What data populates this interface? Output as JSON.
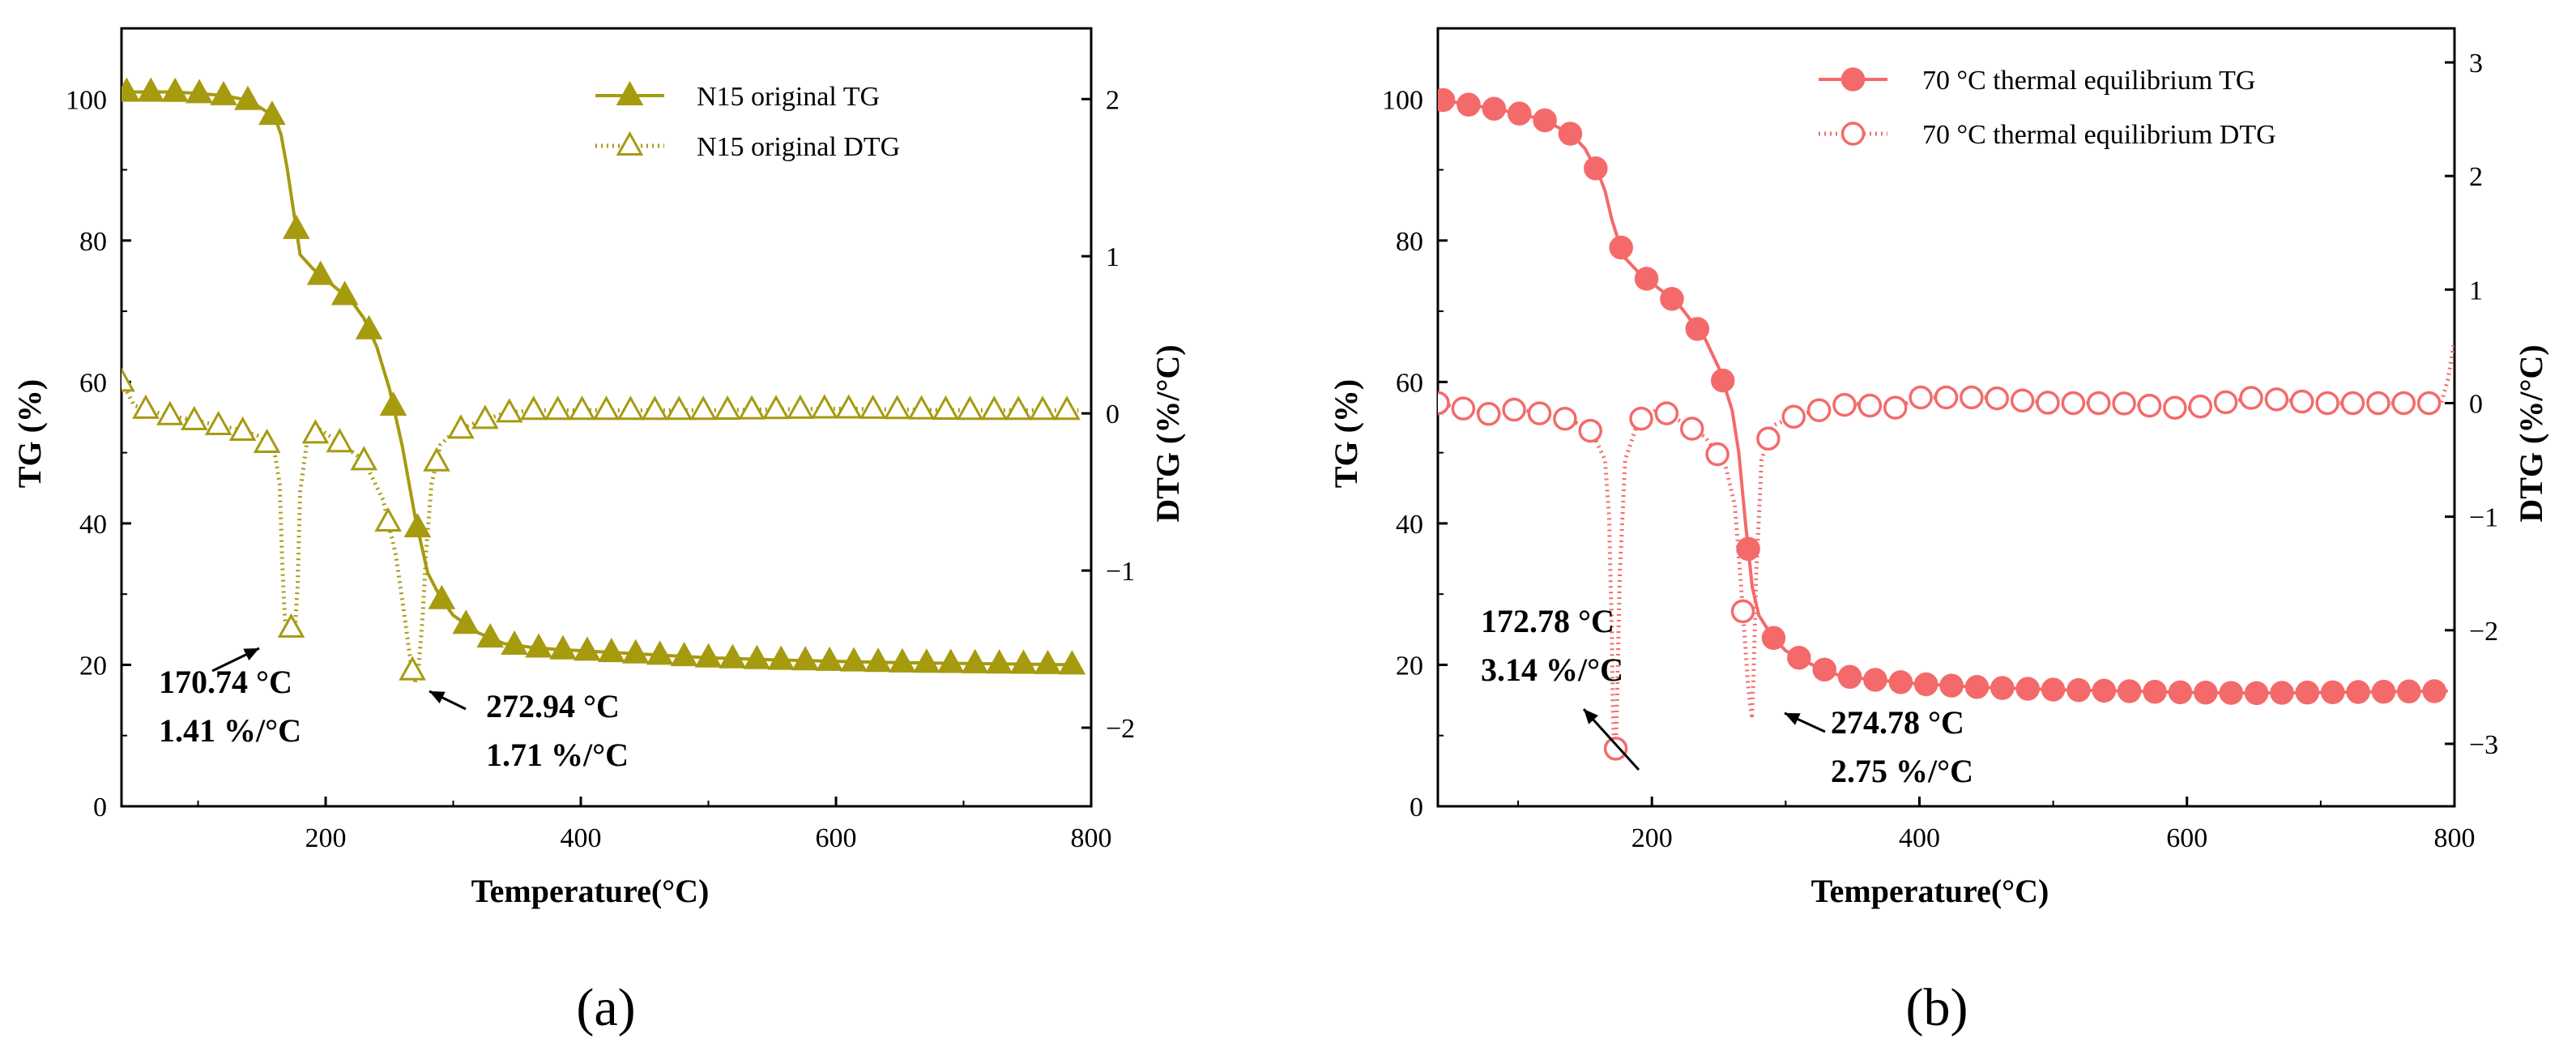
{
  "chart_data": [
    {
      "panel_label": "(a)",
      "type": "line",
      "xlabel": "Temperature(°C)",
      "ylabel": "TG (%)",
      "y2label": "DTG (%/°C)",
      "xlim": [
        40,
        800
      ],
      "ylim": [
        0,
        110
      ],
      "y2lim": [
        -2.5,
        2.45
      ],
      "xticks": [
        200,
        400,
        600,
        800
      ],
      "yticks": [
        0,
        20,
        40,
        60,
        80,
        100
      ],
      "y2ticks": [
        -2,
        -1,
        0,
        1,
        2
      ],
      "y2tick_labels": [
        "−2",
        "−1",
        "0",
        "1",
        "2"
      ],
      "color": "#a69a0f",
      "legend_position": "top-right",
      "series": [
        {
          "name": "N15 original TG",
          "axis": "left",
          "line_style": "solid",
          "marker": "filled-triangle",
          "x": [
            40,
            60,
            80,
            100,
            120,
            140,
            160,
            165,
            170,
            175,
            180,
            190,
            200,
            210,
            220,
            230,
            240,
            250,
            260,
            270,
            275,
            280,
            290,
            300,
            320,
            340,
            360,
            380,
            400,
            450,
            500,
            550,
            600,
            650,
            700,
            750,
            790
          ],
          "values": [
            101,
            101,
            101,
            100.8,
            100.5,
            99.8,
            97.5,
            95,
            90,
            84,
            78,
            76,
            74.5,
            73,
            71.5,
            69,
            65,
            59,
            51,
            41,
            37,
            33,
            29.5,
            27,
            24.5,
            23,
            22.5,
            22.2,
            22,
            21.5,
            21,
            20.7,
            20.5,
            20.3,
            20.2,
            20.1,
            20
          ],
          "markers_x": [
            44,
            63,
            82,
            101,
            120,
            139,
            158,
            177,
            196,
            215,
            234,
            253,
            272,
            291,
            310,
            329,
            348,
            367,
            386,
            405,
            424,
            443,
            462,
            481,
            500,
            519,
            538,
            557,
            576,
            595,
            614,
            633,
            652,
            671,
            690,
            709,
            728,
            747,
            766,
            785
          ]
        },
        {
          "name": "N15 original DTG",
          "axis": "right",
          "line_style": "dotted",
          "marker": "open-triangle",
          "x": [
            40,
            50,
            70,
            100,
            130,
            150,
            160,
            164,
            166,
            168,
            170,
            172,
            174,
            176,
            178,
            180,
            185,
            195,
            210,
            230,
            245,
            255,
            262,
            267,
            270,
            273,
            276,
            279,
            283,
            290,
            300,
            320,
            340,
            360,
            400,
            500,
            600,
            700,
            790
          ],
          "values": [
            0.2,
            0.05,
            0.0,
            -0.05,
            -0.1,
            -0.15,
            -0.25,
            -0.45,
            -0.95,
            -1.3,
            -1.41,
            -1.38,
            -1.35,
            -1.36,
            -1.1,
            -0.5,
            -0.2,
            -0.1,
            -0.18,
            -0.3,
            -0.55,
            -0.9,
            -1.3,
            -1.6,
            -1.71,
            -1.6,
            -1.3,
            -0.85,
            -0.45,
            -0.2,
            -0.12,
            -0.05,
            0.0,
            0.02,
            0.02,
            0.02,
            0.03,
            0.02,
            0.02
          ],
          "markers_x": [
            40,
            59,
            78,
            97,
            116,
            135,
            154,
            173,
            192,
            211,
            230,
            249,
            268,
            287,
            306,
            325,
            344,
            363,
            382,
            401,
            420,
            439,
            458,
            477,
            496,
            515,
            534,
            553,
            572,
            591,
            610,
            629,
            648,
            667,
            686,
            705,
            724,
            743,
            762,
            781
          ]
        }
      ],
      "annotations": [
        {
          "line1": "170.74 °C",
          "line2": "1.41 %/°C",
          "peak_x": 170.74,
          "peak_dtg": -1.41
        },
        {
          "line1": "272.94 °C",
          "line2": "1.71 %/°C",
          "peak_x": 272.94,
          "peak_dtg": -1.71
        }
      ]
    },
    {
      "panel_label": "(b)",
      "type": "line",
      "xlabel": "Temperature(°C)",
      "ylabel": "TG (%)",
      "y2label": "DTG (%/°C)",
      "xlim": [
        40,
        800
      ],
      "ylim": [
        0,
        110
      ],
      "y2lim": [
        -3.55,
        3.3
      ],
      "xticks": [
        200,
        400,
        600,
        800
      ],
      "yticks": [
        0,
        20,
        40,
        60,
        80,
        100
      ],
      "y2ticks": [
        -3,
        -2,
        -1,
        0,
        1,
        2,
        3
      ],
      "y2tick_labels": [
        "−3",
        "−2",
        "−1",
        "0",
        "1",
        "2",
        "3"
      ],
      "color": "#f46a6a",
      "legend_position": "top-right",
      "series": [
        {
          "name": "70 °C thermal equilibrium TG",
          "axis": "left",
          "line_style": "solid",
          "marker": "filled-circle",
          "x": [
            40,
            60,
            80,
            100,
            120,
            140,
            150,
            160,
            165,
            170,
            175,
            180,
            190,
            200,
            220,
            240,
            250,
            260,
            265,
            270,
            275,
            280,
            290,
            300,
            320,
            340,
            360,
            400,
            450,
            500,
            550,
            600,
            650,
            700,
            750,
            795
          ],
          "values": [
            100,
            99.3,
            98.7,
            98,
            97,
            95,
            93,
            89.5,
            87,
            83,
            80,
            77.5,
            75.5,
            74,
            71,
            66,
            62,
            56,
            50,
            40,
            31,
            27,
            24,
            22,
            20,
            18.5,
            18,
            17.3,
            16.8,
            16.5,
            16.3,
            16.1,
            16,
            16.1,
            16.2,
            16.3
          ],
          "markers_x": [
            44,
            63,
            82,
            101,
            120,
            139,
            158,
            177,
            196,
            215,
            234,
            253,
            272,
            291,
            310,
            329,
            348,
            367,
            386,
            405,
            424,
            443,
            462,
            481,
            500,
            519,
            538,
            557,
            576,
            595,
            614,
            633,
            652,
            671,
            690,
            709,
            728,
            747,
            766,
            785
          ]
        },
        {
          "name": "70 °C thermal equilibrium DTG",
          "axis": "right",
          "line_style": "dotted",
          "marker": "open-circle",
          "x": [
            40,
            60,
            80,
            100,
            120,
            140,
            155,
            165,
            168,
            170,
            171,
            172,
            172.78,
            174,
            176,
            180,
            190,
            205,
            220,
            240,
            255,
            262,
            266,
            269,
            272,
            274,
            274.78,
            276,
            278,
            282,
            290,
            310,
            330,
            350,
            380,
            400,
            450,
            500,
            550,
            600,
            650,
            700,
            750,
            790,
            795,
            800
          ],
          "values": [
            0.0,
            -0.05,
            -0.1,
            -0.05,
            -0.1,
            -0.15,
            -0.25,
            -0.5,
            -1.0,
            -2.0,
            -2.8,
            -3.1,
            -3.14,
            -2.6,
            -1.5,
            -0.5,
            -0.15,
            -0.05,
            -0.15,
            -0.3,
            -0.55,
            -0.9,
            -1.5,
            -2.0,
            -2.5,
            -2.7,
            -2.75,
            -2.4,
            -1.5,
            -0.5,
            -0.2,
            -0.1,
            -0.05,
            0.0,
            -0.05,
            0.05,
            0.05,
            0.0,
            0.0,
            -0.05,
            0.05,
            0.0,
            0.0,
            0.0,
            0.2,
            0.55
          ],
          "markers_x": [
            40,
            59,
            78,
            97,
            116,
            135,
            154,
            173,
            192,
            211,
            230,
            249,
            268,
            287,
            306,
            325,
            344,
            363,
            382,
            401,
            420,
            439,
            458,
            477,
            496,
            515,
            534,
            553,
            572,
            591,
            610,
            629,
            648,
            667,
            686,
            705,
            724,
            743,
            762,
            781
          ]
        }
      ],
      "annotations": [
        {
          "line1": "172.78 °C",
          "line2": "3.14 %/°C",
          "peak_x": 172.78,
          "peak_dtg": -3.14
        },
        {
          "line1": "274.78 °C",
          "line2": "2.75 %/°C",
          "peak_x": 274.78,
          "peak_dtg": -2.75
        }
      ]
    }
  ]
}
